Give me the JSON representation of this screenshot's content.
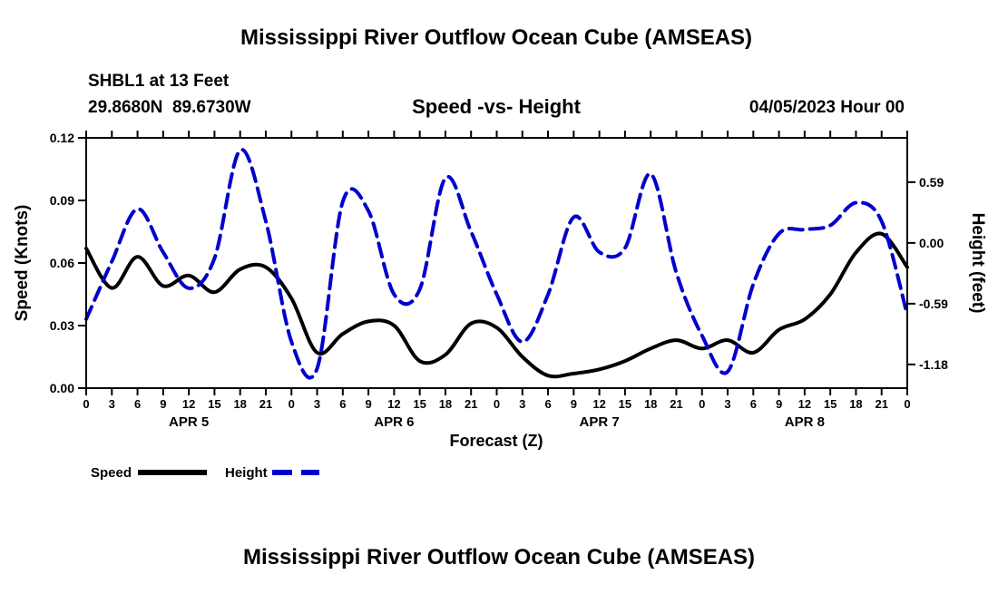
{
  "page": {
    "top_title": "Mississippi River Outflow Ocean Cube (AMSEAS)",
    "bottom_title": "Mississippi River Outflow Ocean Cube (AMSEAS)"
  },
  "header": {
    "station": "SHBL1 at 13 Feet",
    "coordinates": "29.8680N  89.6730W",
    "plot_title": "Speed -vs- Height",
    "datetime": "04/05/2023 Hour 00"
  },
  "legend": {
    "speed_label": "Speed",
    "height_label": "Height"
  },
  "colors": {
    "title": "#00008B",
    "speed_line": "#000000",
    "height_line": "#0000CC"
  },
  "chart_data": {
    "type": "line",
    "title": "Speed -vs- Height",
    "xlabel": "Forecast (Z)",
    "ylabel_left": "Speed (Knots)",
    "ylabel_right": "Height (feet)",
    "grid": false,
    "legend_position": "below",
    "x_range": [
      0,
      96
    ],
    "x_hours": [
      0,
      3,
      6,
      9,
      12,
      15,
      18,
      21,
      24,
      27,
      30,
      33,
      36,
      39,
      42,
      45,
      48,
      51,
      54,
      57,
      60,
      63,
      66,
      69,
      72,
      75,
      78,
      81,
      84,
      87,
      90,
      93,
      96
    ],
    "x_tick_labels": [
      "0",
      "3",
      "6",
      "9",
      "12",
      "15",
      "18",
      "21",
      "0",
      "3",
      "6",
      "9",
      "12",
      "15",
      "18",
      "21",
      "0",
      "3",
      "6",
      "9",
      "12",
      "15",
      "18",
      "21",
      "0",
      "3",
      "6",
      "9",
      "12",
      "15",
      "18",
      "21",
      "0"
    ],
    "day_labels": [
      {
        "label": "APR 5",
        "center_hour": 12
      },
      {
        "label": "APR 6",
        "center_hour": 36
      },
      {
        "label": "APR 7",
        "center_hour": 60
      },
      {
        "label": "APR 8",
        "center_hour": 84
      }
    ],
    "left_axis": {
      "range": [
        0,
        0.12
      ],
      "ticks": [
        {
          "value": 0.0,
          "label": "0.00"
        },
        {
          "value": 0.03,
          "label": "0.03"
        },
        {
          "value": 0.06,
          "label": "0.06"
        },
        {
          "value": 0.09,
          "label": "0.09"
        },
        {
          "value": 0.12,
          "label": "0.12"
        }
      ]
    },
    "right_axis": {
      "range": [
        -1.41,
        1.02
      ],
      "ticks": [
        {
          "value": 0.59,
          "label": "0.59"
        },
        {
          "value": 0.0,
          "label": "0.00"
        },
        {
          "value": -0.59,
          "label": "-0.59"
        },
        {
          "value": -1.18,
          "label": "-1.18"
        }
      ]
    },
    "series": [
      {
        "name": "Speed",
        "axis": "left",
        "style": "solid",
        "color": "#000000",
        "values": [
          0.067,
          0.048,
          0.063,
          0.049,
          0.054,
          0.046,
          0.057,
          0.058,
          0.043,
          0.017,
          0.026,
          0.032,
          0.03,
          0.013,
          0.016,
          0.031,
          0.029,
          0.015,
          0.006,
          0.007,
          0.009,
          0.013,
          0.019,
          0.023,
          0.019,
          0.023,
          0.017,
          0.028,
          0.033,
          0.045,
          0.065,
          0.074,
          0.058
        ]
      },
      {
        "name": "Height",
        "axis": "right",
        "style": "dashed",
        "color": "#0000CC",
        "values": [
          -0.74,
          -0.18,
          0.33,
          -0.09,
          -0.44,
          -0.15,
          0.9,
          0.21,
          -0.96,
          -1.22,
          0.4,
          0.31,
          -0.5,
          -0.45,
          0.63,
          0.11,
          -0.5,
          -0.96,
          -0.5,
          0.25,
          -0.09,
          -0.05,
          0.67,
          -0.29,
          -0.9,
          -1.25,
          -0.4,
          0.09,
          0.13,
          0.17,
          0.39,
          0.21,
          -0.7
        ]
      }
    ]
  }
}
